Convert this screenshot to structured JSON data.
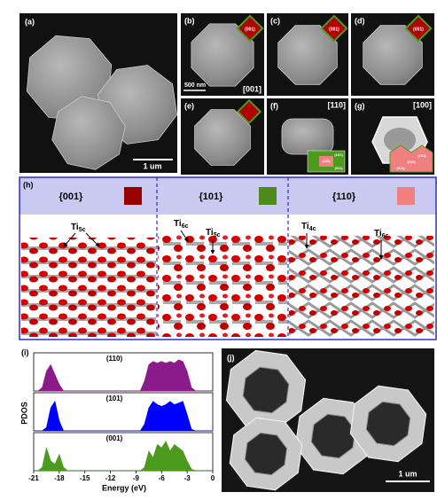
{
  "panels": {
    "a": {
      "label": "(a)",
      "scale_bar": "1 um"
    },
    "b": {
      "label": "(b)",
      "inset": "(001)",
      "scale_bar": "500 nm",
      "zone": "[001]"
    },
    "c": {
      "label": "(c)",
      "inset": "(001)"
    },
    "d": {
      "label": "(d)",
      "inset": "(001)"
    },
    "e": {
      "label": "(e)"
    },
    "f": {
      "label": "(f)",
      "zone": "[110]",
      "inset": [
        "(101)",
        "(110)",
        "(011)"
      ]
    },
    "g": {
      "label": "(g)",
      "zone": "[100]",
      "inset": [
        "(101)",
        "(110)",
        "(011)"
      ]
    },
    "h": {
      "label": "(h)",
      "facets": [
        {
          "name": "{001}",
          "color": "#990000",
          "sites": [
            {
              "base": "Ti",
              "sub": "5c"
            }
          ]
        },
        {
          "name": "{101}",
          "color": "#4d8a1a",
          "sites": [
            {
              "base": "Ti",
              "sub": "6c"
            },
            {
              "base": "Ti",
              "sub": "5c"
            }
          ]
        },
        {
          "name": "{110}",
          "color": "#f08080",
          "sites": [
            {
              "base": "Ti",
              "sub": "4c"
            },
            {
              "base": "Ti",
              "sub": "6c"
            }
          ]
        }
      ]
    },
    "j": {
      "label": "(j)",
      "scale_bar": "1 um"
    }
  },
  "chart_data": {
    "type": "area",
    "panel_label": "(i)",
    "xlabel": "Energy (eV)",
    "ylabel": "PDOS",
    "xlim": [
      -21,
      0
    ],
    "xticks": [
      -21,
      -18,
      -15,
      -12,
      -9,
      -6,
      -3,
      0
    ],
    "ylim": [
      0,
      1
    ],
    "x": [
      -21,
      -20.5,
      -20,
      -19.5,
      -19,
      -18.5,
      -18,
      -17.5,
      -17,
      -16.5,
      -16,
      -15.5,
      -15,
      -14.5,
      -14,
      -13.5,
      -13,
      -12.5,
      -12,
      -11.5,
      -11,
      -10.5,
      -10,
      -9.5,
      -9,
      -8.5,
      -8,
      -7.5,
      -7,
      -6.5,
      -6,
      -5.5,
      -5,
      -4.5,
      -4,
      -3.5,
      -3,
      -2.5,
      -2,
      -1.5,
      -1,
      -0.5,
      0
    ],
    "series": [
      {
        "name": "(110)",
        "color": "#8b1a8b",
        "values": [
          0,
          0,
          0.1,
          0.6,
          0.8,
          0.5,
          0.2,
          0,
          0,
          0,
          0,
          0,
          0,
          0,
          0,
          0,
          0,
          0,
          0,
          0,
          0,
          0,
          0,
          0,
          0,
          0,
          0.3,
          0.8,
          0.9,
          0.85,
          0.9,
          0.85,
          0.9,
          0.85,
          0.95,
          0.9,
          0.6,
          0.1,
          0,
          0,
          0,
          0,
          0
        ]
      },
      {
        "name": "(101)",
        "color": "#0000ff",
        "values": [
          0,
          0,
          0,
          0.1,
          0.7,
          0.9,
          0.3,
          0,
          0,
          0,
          0,
          0,
          0,
          0,
          0,
          0,
          0,
          0,
          0,
          0,
          0,
          0,
          0,
          0,
          0,
          0,
          0.2,
          0.7,
          0.9,
          0.8,
          0.75,
          0.8,
          0.9,
          0.8,
          0.85,
          0.9,
          0.5,
          0.05,
          0,
          0,
          0,
          0,
          0
        ]
      },
      {
        "name": "(001)",
        "color": "#4c9a1e",
        "values": [
          0,
          0,
          0.1,
          0.7,
          0.3,
          0.2,
          0.5,
          0.1,
          0,
          0,
          0,
          0,
          0,
          0,
          0,
          0,
          0,
          0,
          0,
          0,
          0,
          0,
          0,
          0,
          0,
          0,
          0.1,
          0.6,
          0.4,
          0.8,
          0.7,
          0.9,
          0.6,
          0.8,
          0.7,
          0.6,
          0.3,
          0.05,
          0,
          0,
          0,
          0,
          0
        ]
      }
    ]
  }
}
